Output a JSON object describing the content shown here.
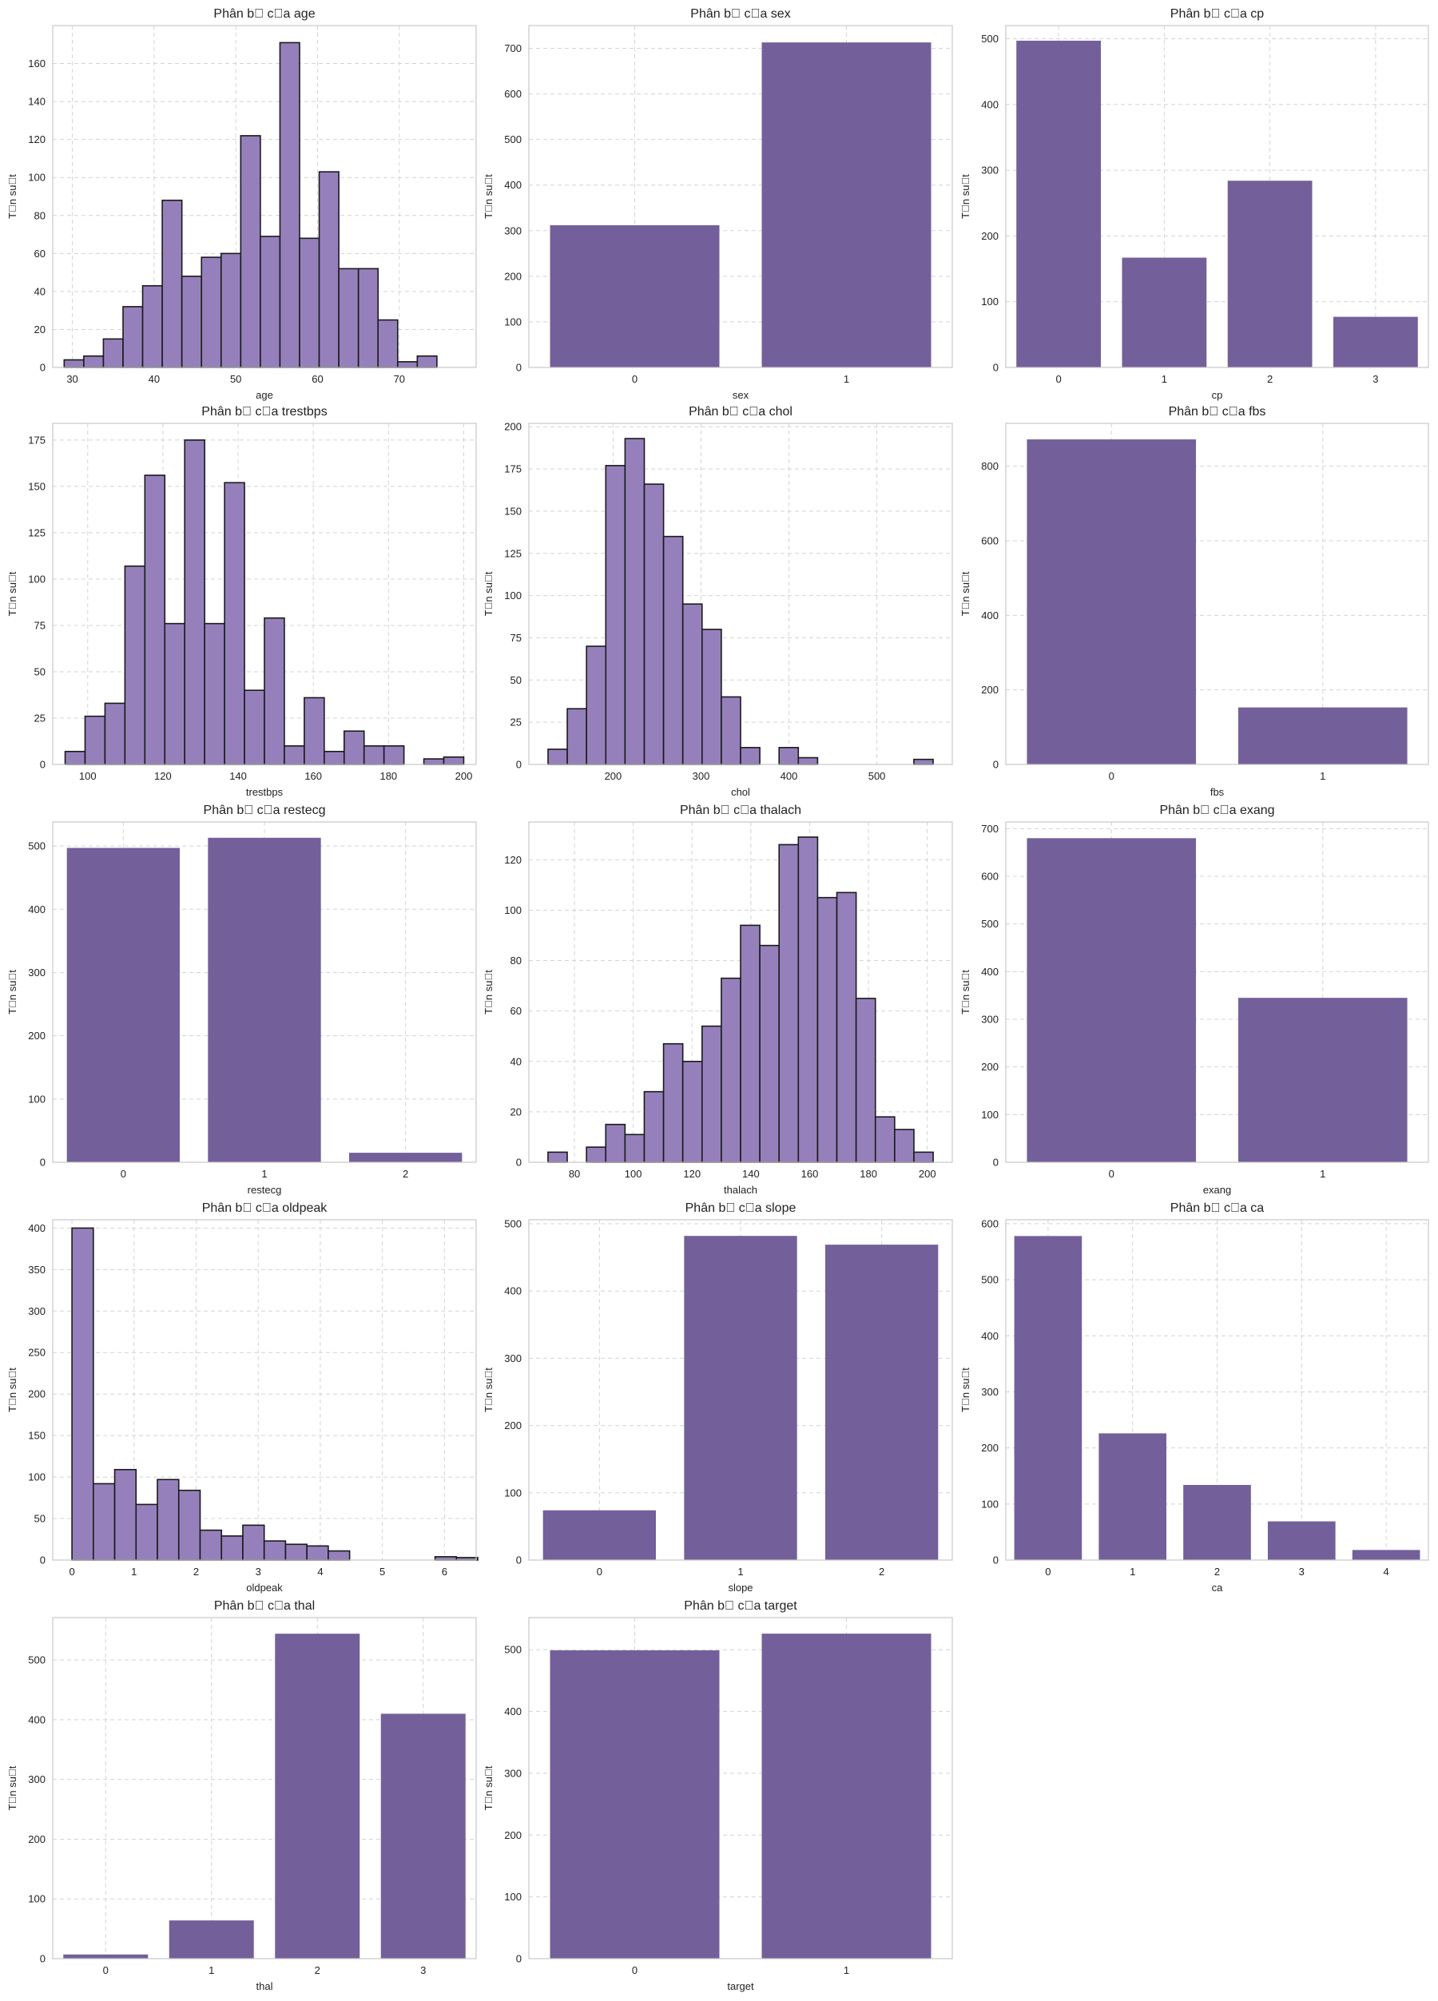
{
  "figure": {
    "ylabel_all": "T\u0000n su\u0000t",
    "colors": {
      "bar": "#73609a",
      "hist": "#9580bc",
      "edge": "#1a1a1a",
      "grid": "#d4d4d4",
      "frame": "#c8c8c8",
      "text": "#222222"
    }
  },
  "chart_data": [
    {
      "type": "bar",
      "subtype": "histogram",
      "title": "Phân b\u0000 c\u0000a age",
      "xlabel": "age",
      "ylabel": "T\u0000n su\u0000t",
      "xlim": [
        27.6,
        79.4
      ],
      "ylim": [
        0,
        180
      ],
      "xticks": [
        30,
        40,
        50,
        60,
        70
      ],
      "yticks": [
        0,
        20,
        40,
        60,
        80,
        100,
        120,
        140,
        160
      ],
      "bin_start": 29,
      "bin_width": 2.4,
      "values": [
        4,
        6,
        15,
        32,
        43,
        88,
        48,
        58,
        60,
        122,
        69,
        171,
        68,
        103,
        52,
        52,
        25,
        3,
        6
      ],
      "grid": true
    },
    {
      "type": "bar",
      "title": "Phân b\u0000 c\u0000a sex",
      "xlabel": "sex",
      "ylabel": "T\u0000n su\u0000t",
      "categories": [
        "0",
        "1"
      ],
      "values": [
        312,
        713
      ],
      "ylim": [
        0,
        750
      ],
      "yticks": [
        0,
        100,
        200,
        300,
        400,
        500,
        600,
        700
      ],
      "grid": true
    },
    {
      "type": "bar",
      "title": "Phân b\u0000 c\u0000a cp",
      "xlabel": "cp",
      "ylabel": "T\u0000n su\u0000t",
      "categories": [
        "0",
        "1",
        "2",
        "3"
      ],
      "values": [
        497,
        167,
        284,
        77
      ],
      "ylim": [
        0,
        520
      ],
      "yticks": [
        0,
        100,
        200,
        300,
        400,
        500
      ],
      "grid": true
    },
    {
      "type": "bar",
      "subtype": "histogram",
      "title": "Phân b\u0000 c\u0000a trestbps",
      "xlabel": "trestbps",
      "ylabel": "T\u0000n su\u0000t",
      "xlim": [
        90.7,
        203.3
      ],
      "ylim": [
        0,
        184
      ],
      "xticks": [
        100,
        120,
        140,
        160,
        180,
        200
      ],
      "yticks": [
        0,
        25,
        50,
        75,
        100,
        125,
        150,
        175
      ],
      "bin_start": 94,
      "bin_width": 5.3,
      "values": [
        7,
        26,
        33,
        107,
        156,
        76,
        175,
        76,
        152,
        40,
        79,
        10,
        36,
        7,
        18,
        10,
        10,
        0,
        3,
        4
      ],
      "grid": true
    },
    {
      "type": "bar",
      "subtype": "histogram",
      "title": "Phân b\u0000 c\u0000a chol",
      "xlabel": "chol",
      "ylabel": "T\u0000n su\u0000t",
      "xlim": [
        104.2,
        585.8
      ],
      "ylim": [
        0,
        202
      ],
      "xticks": [
        200,
        300,
        400,
        500
      ],
      "yticks": [
        0,
        25,
        50,
        75,
        100,
        125,
        150,
        175,
        200
      ],
      "bin_start": 126,
      "bin_width": 21.9,
      "values": [
        9,
        33,
        70,
        177,
        193,
        166,
        135,
        95,
        80,
        40,
        10,
        0,
        10,
        4,
        0,
        0,
        0,
        0,
        0,
        3
      ],
      "grid": true
    },
    {
      "type": "bar",
      "title": "Phân b\u0000 c\u0000a fbs",
      "xlabel": "fbs",
      "ylabel": "T\u0000n su\u0000t",
      "categories": [
        "0",
        "1"
      ],
      "values": [
        872,
        153
      ],
      "ylim": [
        0,
        915
      ],
      "yticks": [
        0,
        200,
        400,
        600,
        800
      ],
      "grid": true
    },
    {
      "type": "bar",
      "title": "Phân b\u0000 c\u0000a restecg",
      "xlabel": "restecg",
      "ylabel": "T\u0000n su\u0000t",
      "categories": [
        "0",
        "1",
        "2"
      ],
      "values": [
        497,
        513,
        15
      ],
      "ylim": [
        0,
        538
      ],
      "yticks": [
        0,
        100,
        200,
        300,
        400,
        500
      ],
      "grid": true
    },
    {
      "type": "bar",
      "subtype": "histogram",
      "title": "Phân b\u0000 c\u0000a thalach",
      "xlabel": "thalach",
      "ylabel": "T\u0000n su\u0000t",
      "xlim": [
        64.5,
        208.5
      ],
      "ylim": [
        0,
        135
      ],
      "xticks": [
        80,
        100,
        120,
        140,
        160,
        180,
        200
      ],
      "yticks": [
        0,
        20,
        40,
        60,
        80,
        100,
        120
      ],
      "bin_start": 71,
      "bin_width": 6.55,
      "values": [
        4,
        0,
        6,
        15,
        11,
        28,
        47,
        40,
        54,
        73,
        94,
        86,
        126,
        129,
        105,
        107,
        65,
        18,
        13,
        4
      ],
      "grid": true
    },
    {
      "type": "bar",
      "title": "Phân b\u0000 c\u0000a exang",
      "xlabel": "exang",
      "ylabel": "T\u0000n su\u0000t",
      "categories": [
        "0",
        "1"
      ],
      "values": [
        680,
        345
      ],
      "ylim": [
        0,
        714
      ],
      "yticks": [
        0,
        100,
        200,
        300,
        400,
        500,
        600,
        700
      ],
      "grid": true
    },
    {
      "type": "bar",
      "subtype": "histogram",
      "title": "Phân b\u0000 c\u0000a oldpeak",
      "xlabel": "oldpeak",
      "ylabel": "T\u0000n su\u0000t",
      "xlim": [
        -0.31,
        6.51
      ],
      "ylim": [
        0,
        410
      ],
      "xticks": [
        0,
        1,
        2,
        3,
        4,
        5,
        6
      ],
      "yticks": [
        0,
        50,
        100,
        150,
        200,
        250,
        300,
        350,
        400
      ],
      "bin_start": 0,
      "bin_width": 0.344,
      "values": [
        400,
        92,
        109,
        67,
        97,
        84,
        36,
        29,
        42,
        23,
        19,
        17,
        11,
        0,
        0,
        0,
        0,
        4,
        3
      ],
      "grid": true
    },
    {
      "type": "bar",
      "title": "Phân b\u0000 c\u0000a slope",
      "xlabel": "slope",
      "ylabel": "T\u0000n su\u0000t",
      "categories": [
        "0",
        "1",
        "2"
      ],
      "values": [
        74,
        482,
        469
      ],
      "ylim": [
        0,
        506
      ],
      "yticks": [
        0,
        100,
        200,
        300,
        400,
        500
      ],
      "grid": true
    },
    {
      "type": "bar",
      "title": "Phân b\u0000 c\u0000a ca",
      "xlabel": "ca",
      "ylabel": "T\u0000n su\u0000t",
      "categories": [
        "0",
        "1",
        "2",
        "3",
        "4"
      ],
      "values": [
        578,
        226,
        134,
        69,
        18
      ],
      "ylim": [
        0,
        607
      ],
      "yticks": [
        0,
        100,
        200,
        300,
        400,
        500,
        600
      ],
      "grid": true
    },
    {
      "type": "bar",
      "title": "Phân b\u0000 c\u0000a thal",
      "xlabel": "thal",
      "ylabel": "T\u0000n su\u0000t",
      "categories": [
        "0",
        "1",
        "2",
        "3"
      ],
      "values": [
        7,
        64,
        544,
        410
      ],
      "ylim": [
        0,
        571
      ],
      "yticks": [
        0,
        100,
        200,
        300,
        400,
        500
      ],
      "grid": true
    },
    {
      "type": "bar",
      "title": "Phân b\u0000 c\u0000a target",
      "xlabel": "target",
      "ylabel": "T\u0000n su\u0000t",
      "categories": [
        "0",
        "1"
      ],
      "values": [
        499,
        526
      ],
      "ylim": [
        0,
        552
      ],
      "yticks": [
        0,
        100,
        200,
        300,
        400,
        500
      ],
      "grid": true
    }
  ]
}
